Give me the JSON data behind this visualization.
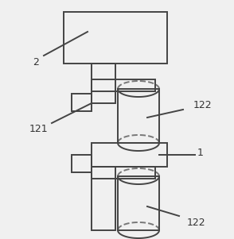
{
  "bg_color": "#f0f0f0",
  "line_color": "#444444",
  "line_width": 1.4,
  "label_fontsize": 9,
  "label_color": "#333333"
}
